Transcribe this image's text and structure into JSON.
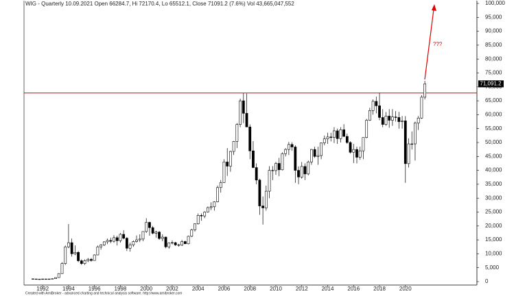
{
  "chart_data": {
    "type": "candlestick",
    "title": "WIG - Quarterly 10.09.2021 Open 66284.7, Hi 72170.4, Lo 65512.1, Close 71091.2 (7.6%) Vol 43,665,047,552",
    "footer": "Created with AmiBroker - advanced charting and technical analysis software. http://www.amibroker.com",
    "annotation": "???",
    "last_label": "71,091.2",
    "reference_line": 67800,
    "reference_color": "#e00000",
    "up_color": "#ffffff",
    "down_color": "#000000",
    "ylim": [
      0,
      100000
    ],
    "yticks": [
      0,
      {
        "value": 5000,
        "label": "5,000"
      },
      {
        "value": 10000,
        "label": "10,000"
      },
      {
        "value": 15000,
        "label": "15,000"
      },
      {
        "value": 20000,
        "label": "20,000"
      },
      {
        "value": 25000,
        "label": "25,000"
      },
      {
        "value": 30000,
        "label": "30,000"
      },
      {
        "value": 35000,
        "label": "35,000"
      },
      {
        "value": 40000,
        "label": "40,000"
      },
      {
        "value": 45000,
        "label": "45,000"
      },
      {
        "value": 50000,
        "label": "50,000"
      },
      {
        "value": 55000,
        "label": "55,000"
      },
      {
        "value": 60000,
        "label": "60,000"
      },
      {
        "value": 65000,
        "label": "65,000"
      },
      {
        "value": 70000,
        "label": "70,000"
      },
      {
        "value": 75000,
        "label": "75,000"
      },
      {
        "value": 80000,
        "label": "80,000"
      },
      {
        "value": 85000,
        "label": "85,000"
      },
      {
        "value": 90000,
        "label": "90,000"
      },
      {
        "value": 95000,
        "label": "95,000"
      },
      {
        "value": 100000,
        "label": "100,000"
      }
    ],
    "categories": [
      null,
      null,
      null,
      "1992",
      null,
      null,
      null,
      null,
      null,
      null,
      null,
      "1994",
      null,
      null,
      null,
      null,
      null,
      null,
      null,
      "1996",
      null,
      null,
      null,
      null,
      null,
      null,
      null,
      "1998",
      null,
      null,
      null,
      null,
      null,
      null,
      null,
      "2000",
      null,
      null,
      null,
      null,
      null,
      null,
      null,
      "2002",
      null,
      null,
      null,
      null,
      null,
      null,
      null,
      "2004",
      null,
      null,
      null,
      null,
      null,
      null,
      null,
      "2006",
      null,
      null,
      null,
      null,
      null,
      null,
      null,
      "2008",
      null,
      null,
      null,
      null,
      null,
      null,
      null,
      "2010",
      null,
      null,
      null,
      null,
      null,
      null,
      null,
      "2012",
      null,
      null,
      null,
      null,
      null,
      null,
      null,
      "2014",
      null,
      null,
      null,
      null,
      null,
      null,
      null,
      "2016",
      null,
      null,
      null,
      null,
      null,
      null,
      null,
      "2018",
      null,
      null,
      null,
      null,
      null,
      null,
      null,
      "2020",
      null,
      null,
      null,
      null,
      null,
      null
    ],
    "ohlc": [
      [
        1000,
        1100,
        900,
        950
      ],
      [
        950,
        1000,
        800,
        850
      ],
      [
        850,
        950,
        800,
        900
      ],
      [
        900,
        1000,
        850,
        950
      ],
      [
        950,
        1000,
        850,
        900
      ],
      [
        900,
        1000,
        850,
        950
      ],
      [
        950,
        1100,
        900,
        1050
      ],
      [
        1050,
        1500,
        1000,
        1450
      ],
      [
        1450,
        3000,
        1400,
        2900
      ],
      [
        2900,
        7000,
        2800,
        6500
      ],
      [
        6500,
        13000,
        6000,
        12500
      ],
      [
        12500,
        20700,
        12000,
        14000
      ],
      [
        14000,
        15500,
        9000,
        10000
      ],
      [
        10000,
        13000,
        9500,
        10500
      ],
      [
        10500,
        11000,
        7000,
        7500
      ],
      [
        7500,
        8000,
        6000,
        6500
      ],
      [
        6500,
        8000,
        6000,
        7500
      ],
      [
        7500,
        8500,
        7000,
        8000
      ],
      [
        8000,
        8500,
        7200,
        7600
      ],
      [
        7600,
        9800,
        7500,
        9600
      ],
      [
        9600,
        13000,
        9500,
        12500
      ],
      [
        12500,
        13500,
        11500,
        13200
      ],
      [
        13200,
        14500,
        12800,
        14300
      ],
      [
        14300,
        15500,
        13500,
        14800
      ],
      [
        14800,
        15800,
        13800,
        14500
      ],
      [
        14500,
        16700,
        14000,
        15800
      ],
      [
        15800,
        16500,
        13000,
        14700
      ],
      [
        14700,
        17500,
        14000,
        17000
      ],
      [
        17000,
        18500,
        15200,
        15600
      ],
      [
        15600,
        16000,
        11000,
        12000
      ],
      [
        12000,
        14000,
        10800,
        13200
      ],
      [
        13200,
        14800,
        12500,
        14400
      ],
      [
        14400,
        16600,
        14000,
        15000
      ],
      [
        15000,
        17000,
        14200,
        15300
      ],
      [
        15300,
        18100,
        14500,
        18000
      ],
      [
        18000,
        22800,
        17500,
        21300
      ],
      [
        21300,
        21500,
        16500,
        19400
      ],
      [
        19400,
        20000,
        17000,
        17400
      ],
      [
        17400,
        18300,
        15800,
        17800
      ],
      [
        17800,
        18200,
        15000,
        15500
      ],
      [
        15500,
        17000,
        14500,
        16000
      ],
      [
        16000,
        16200,
        12000,
        12500
      ],
      [
        12500,
        14000,
        11800,
        13900
      ],
      [
        13900,
        14800,
        13400,
        14000
      ],
      [
        14000,
        14300,
        12800,
        13200
      ],
      [
        13200,
        13600,
        12600,
        13100
      ],
      [
        13100,
        15000,
        12800,
        14400
      ],
      [
        14400,
        14700,
        13500,
        13600
      ],
      [
        13600,
        16500,
        13400,
        16300
      ],
      [
        16300,
        19000,
        16000,
        18600
      ],
      [
        18600,
        20900,
        18000,
        20800
      ],
      [
        20800,
        24500,
        20500,
        23800
      ],
      [
        23800,
        24500,
        21900,
        23600
      ],
      [
        23600,
        25300,
        22800,
        25000
      ],
      [
        25000,
        27000,
        24800,
        26600
      ],
      [
        26600,
        28500,
        25700,
        26900
      ],
      [
        26900,
        28900,
        25500,
        28700
      ],
      [
        28700,
        34500,
        28500,
        33800
      ],
      [
        33800,
        36500,
        32000,
        35600
      ],
      [
        35600,
        44000,
        35500,
        43000
      ],
      [
        43000,
        48000,
        38000,
        41500
      ],
      [
        41500,
        47000,
        39500,
        46800
      ],
      [
        46800,
        50600,
        45500,
        50400
      ],
      [
        50400,
        57000,
        48000,
        56500
      ],
      [
        56500,
        65800,
        55500,
        65000
      ],
      [
        65000,
        67800,
        57000,
        60500
      ],
      [
        60500,
        67600,
        55500,
        55600
      ],
      [
        55600,
        56500,
        44000,
        47000
      ],
      [
        47000,
        50500,
        40800,
        41000
      ],
      [
        41000,
        42500,
        35000,
        36500
      ],
      [
        36500,
        37000,
        24000,
        27200
      ],
      [
        27200,
        30600,
        20500,
        26500
      ],
      [
        26500,
        34500,
        25500,
        32500
      ],
      [
        32500,
        41500,
        30000,
        40000
      ],
      [
        40000,
        41500,
        36500,
        39900
      ],
      [
        39900,
        43000,
        38400,
        42500
      ],
      [
        42500,
        44500,
        37900,
        40200
      ],
      [
        40200,
        46500,
        40000,
        46000
      ],
      [
        46000,
        48000,
        45000,
        47500
      ],
      [
        47500,
        50200,
        45500,
        49300
      ],
      [
        49300,
        50100,
        47000,
        48400
      ],
      [
        48400,
        49000,
        35500,
        40000
      ],
      [
        40000,
        41400,
        35000,
        37600
      ],
      [
        37600,
        43000,
        37000,
        41400
      ],
      [
        41400,
        42500,
        36500,
        38700
      ],
      [
        38700,
        43500,
        38200,
        43000
      ],
      [
        43000,
        47700,
        42000,
        47500
      ],
      [
        47500,
        48500,
        44500,
        45000
      ],
      [
        45000,
        48500,
        42000,
        45300
      ],
      [
        45300,
        50000,
        44000,
        49900
      ],
      [
        49900,
        52500,
        49000,
        51300
      ],
      [
        51300,
        53500,
        49500,
        52000
      ],
      [
        52000,
        53500,
        50400,
        51800
      ],
      [
        51800,
        55500,
        49800,
        54200
      ],
      [
        54200,
        55000,
        49500,
        51400
      ],
      [
        51400,
        55500,
        50000,
        54600
      ],
      [
        54600,
        56600,
        52000,
        52200
      ],
      [
        52200,
        53200,
        49500,
        50000
      ],
      [
        50000,
        50500,
        46000,
        46500
      ],
      [
        46500,
        49500,
        42600,
        47500
      ],
      [
        47500,
        48500,
        42500,
        44700
      ],
      [
        44700,
        48500,
        43800,
        47000
      ],
      [
        47000,
        51800,
        44000,
        51800
      ],
      [
        51800,
        58500,
        51500,
        58000
      ],
      [
        58000,
        62500,
        57800,
        61500
      ],
      [
        61500,
        65500,
        60000,
        64800
      ],
      [
        64800,
        66500,
        60500,
        63200
      ],
      [
        63200,
        67900,
        58000,
        59000
      ],
      [
        59000,
        62000,
        55500,
        56500
      ],
      [
        56500,
        61000,
        56000,
        59500
      ],
      [
        59500,
        62000,
        55300,
        58000
      ],
      [
        58000,
        62000,
        56000,
        59200
      ],
      [
        59200,
        61300,
        57500,
        59000
      ],
      [
        59000,
        61000,
        55000,
        57500
      ],
      [
        57500,
        59500,
        55000,
        57800
      ],
      [
        57800,
        59500,
        35500,
        42400
      ],
      [
        42400,
        51500,
        41000,
        49500
      ],
      [
        49500,
        54000,
        47500,
        49500
      ],
      [
        49500,
        57500,
        43500,
        57000
      ],
      [
        57000,
        59500,
        54500,
        58800
      ],
      [
        58800,
        67000,
        58500,
        66300
      ],
      [
        66284.7,
        72170.4,
        65512.1,
        71091.2
      ]
    ]
  }
}
